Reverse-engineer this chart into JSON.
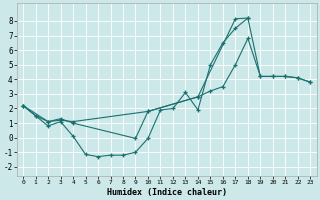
{
  "xlabel": "Humidex (Indice chaleur)",
  "bg_color": "#cce8e8",
  "line_color": "#1a7070",
  "grid_color": "#ffffff",
  "xlim": [
    -0.5,
    23.5
  ],
  "ylim": [
    -2.6,
    9.2
  ],
  "xticks": [
    0,
    1,
    2,
    3,
    4,
    5,
    6,
    7,
    8,
    9,
    10,
    11,
    12,
    13,
    14,
    15,
    16,
    17,
    18,
    19,
    20,
    21,
    22,
    23
  ],
  "yticks": [
    -2,
    -1,
    0,
    1,
    2,
    3,
    4,
    5,
    6,
    7,
    8
  ],
  "line1_x": [
    0,
    1,
    2,
    3,
    4,
    5,
    6,
    7,
    8,
    9,
    10,
    11,
    12,
    13,
    14,
    15,
    16,
    17,
    18
  ],
  "line1_y": [
    2.2,
    1.5,
    0.8,
    1.1,
    0.1,
    -1.15,
    -1.3,
    -1.2,
    -1.2,
    -1.0,
    -0.05,
    1.9,
    2.0,
    3.1,
    1.9,
    5.0,
    6.5,
    7.5,
    8.2
  ],
  "line2_x": [
    0,
    1,
    2,
    3,
    4,
    10,
    14,
    15,
    16,
    17,
    18,
    19,
    20,
    21,
    22,
    23
  ],
  "line2_y": [
    2.2,
    1.5,
    1.1,
    1.2,
    1.1,
    1.8,
    2.8,
    3.2,
    3.5,
    5.0,
    6.8,
    4.2,
    4.2,
    4.2,
    4.1,
    3.8
  ],
  "line3_x": [
    0,
    2,
    3,
    4,
    9,
    10,
    14,
    17,
    18,
    19,
    20,
    21,
    22,
    23
  ],
  "line3_y": [
    2.2,
    1.1,
    1.3,
    1.0,
    -0.05,
    1.8,
    2.8,
    8.15,
    8.2,
    4.2,
    4.2,
    4.2,
    4.1,
    3.8
  ]
}
